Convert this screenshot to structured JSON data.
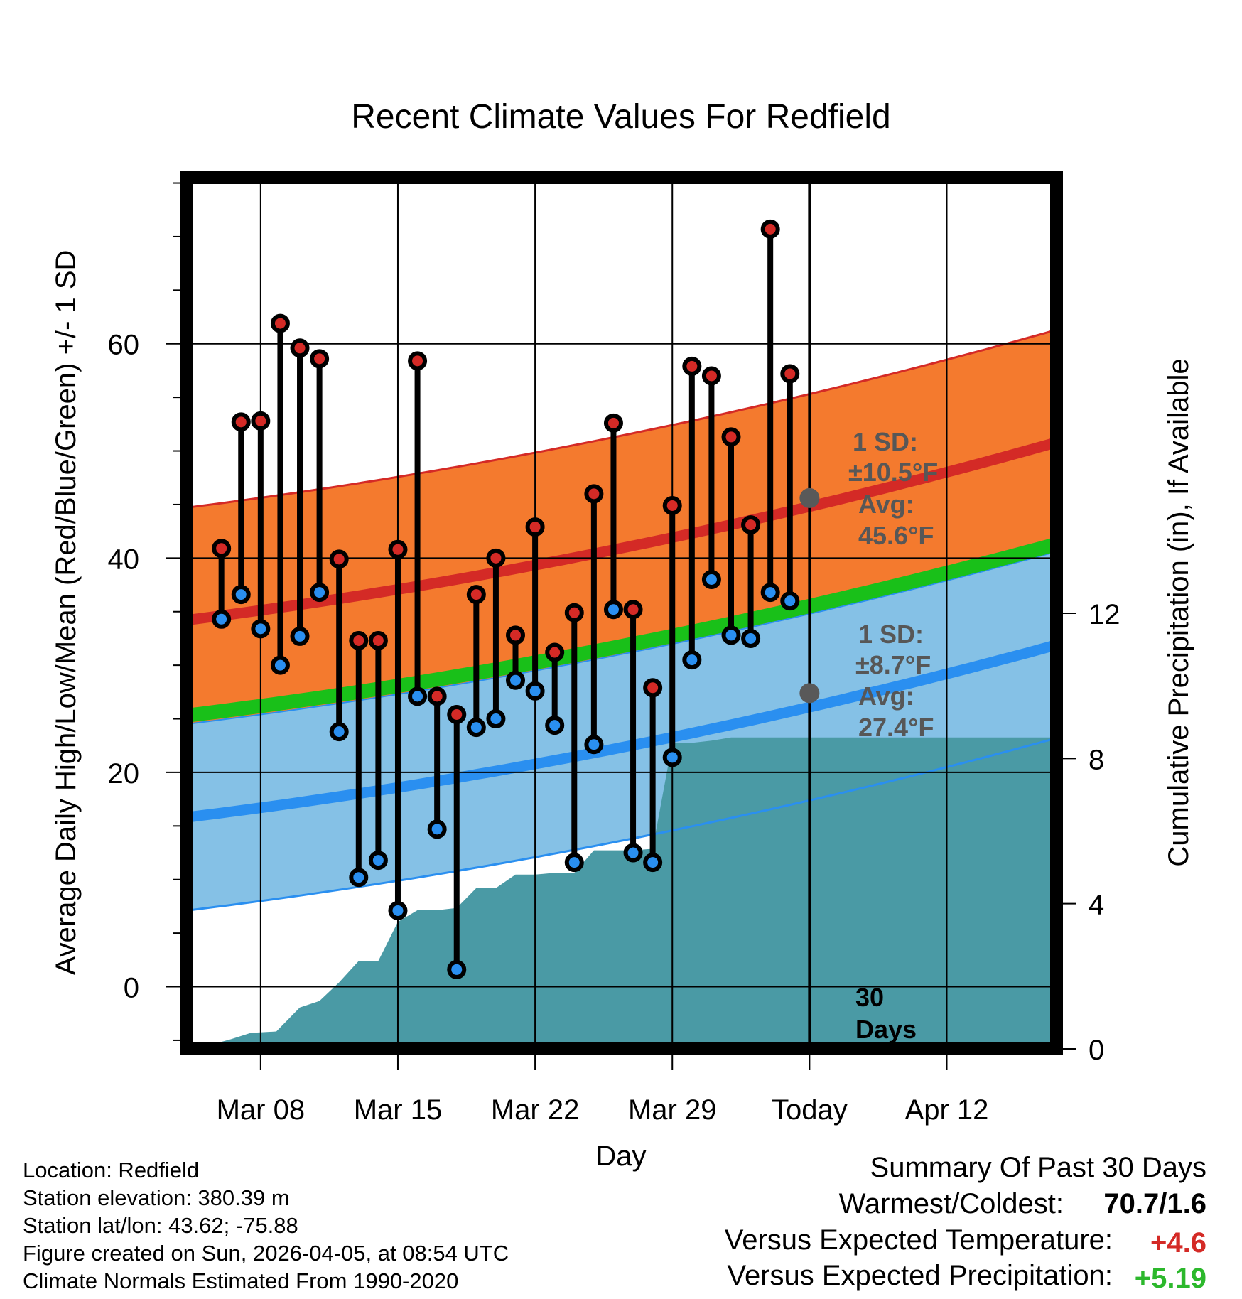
{
  "chart_data": {
    "type": "line",
    "title": "Recent Climate Values For Redfield",
    "xlabel": "Day",
    "ylabel": "Average Daily High/Low/Mean (Red/Blue/Green) +/- 1 SD",
    "y2label": "Cumulative Precipitation (in), If Available",
    "x_range": [
      -31.8,
      12.6
    ],
    "ylim": [
      -5.8,
      75.5
    ],
    "y2lim": [
      0,
      24
    ],
    "x_ticks": [
      {
        "day": -28,
        "label": "Mar 08"
      },
      {
        "day": -21,
        "label": "Mar 15"
      },
      {
        "day": -14,
        "label": "Mar 22"
      },
      {
        "day": -7,
        "label": "Mar 29"
      },
      {
        "day": 0,
        "label": "Today"
      },
      {
        "day": 7,
        "label": "Apr 12"
      }
    ],
    "y_ticks": [
      0,
      20,
      40,
      60
    ],
    "y2_ticks": [
      0,
      4,
      8,
      12
    ],
    "normal_high": {
      "start": 34.2,
      "end": 50.8,
      "sd_today": 10.5,
      "avg_today": 45.6
    },
    "normal_low": {
      "start": 15.8,
      "end": 31.9,
      "sd_today": 8.7,
      "avg_today": 27.4
    },
    "normal_mean": {
      "start": 25.3,
      "end": 41.3
    },
    "annotations": {
      "high": {
        "sd_label": "1 SD:",
        "sd_value": "±10.5°F",
        "avg_label": "Avg:",
        "avg_value": "45.6°F"
      },
      "low": {
        "sd_label": "1 SD:",
        "sd_value": "±8.7°F",
        "avg_label": "Avg:",
        "avg_value": "27.4°F"
      },
      "today_window": "30 Days"
    },
    "daily": {
      "days": [
        -30,
        -29,
        -28,
        -27,
        -26,
        -25,
        -24,
        -23,
        -22,
        -21,
        -20,
        -19,
        -18,
        -17,
        -16,
        -15,
        -14,
        -13,
        -12,
        -11,
        -10,
        -9,
        -8,
        -7,
        -6,
        -5,
        -4,
        -3,
        -2,
        -1
      ],
      "highs": [
        40.9,
        52.7,
        52.8,
        61.9,
        59.6,
        58.6,
        39.9,
        32.3,
        32.3,
        40.8,
        58.4,
        27.1,
        25.4,
        36.6,
        40.0,
        32.8,
        42.9,
        31.2,
        34.9,
        46.0,
        52.6,
        35.2,
        27.9,
        44.9,
        57.9,
        57.0,
        51.3,
        43.1,
        70.7,
        57.2
      ],
      "lows": [
        34.3,
        36.6,
        33.4,
        30.0,
        32.7,
        36.8,
        23.8,
        10.2,
        11.8,
        7.1,
        27.1,
        14.7,
        1.6,
        24.2,
        25.0,
        28.6,
        27.6,
        24.4,
        11.6,
        22.6,
        35.2,
        12.5,
        11.6,
        21.4,
        30.5,
        38.0,
        32.8,
        32.5,
        36.8,
        36.0
      ]
    },
    "precip": {
      "days": [
        -31.3,
        -29.5,
        -28.5,
        -27.2,
        -26,
        -25,
        -24,
        -23,
        -22,
        -21,
        -20,
        -19,
        -18,
        -17,
        -16,
        -15,
        -14,
        -13,
        -12,
        -11,
        -10,
        -9,
        -8,
        -7,
        -6,
        -5,
        -4,
        -3,
        -2,
        -1,
        0,
        12.6
      ],
      "cumulative": [
        0,
        0.27,
        0.44,
        0.48,
        1.14,
        1.32,
        1.83,
        2.42,
        2.42,
        3.5,
        3.82,
        3.82,
        3.88,
        4.43,
        4.43,
        4.8,
        4.8,
        4.85,
        4.85,
        5.47,
        5.47,
        5.47,
        5.51,
        8.43,
        8.43,
        8.49,
        8.58,
        8.58,
        8.58,
        8.58,
        8.58,
        8.58
      ]
    }
  },
  "info": {
    "location": "Location: Redfield",
    "elevation": "Station elevation: 380.39 m",
    "latlon": "Station lat/lon: 43.62; -75.88",
    "created": "Figure created on Sun, 2026-04-05, at 08:54 UTC",
    "normals": "Climate Normals Estimated From 1990-2020"
  },
  "summary": {
    "title": "Summary Of Past 30 Days",
    "warm_cold_label": "Warmest/Coldest:",
    "warm_cold_value": "70.7/1.6",
    "temp_label": "Versus Expected Temperature:",
    "temp_value": "+4.6",
    "precip_label": "Versus Expected Precipitation:",
    "precip_value": "+5.19"
  },
  "colors": {
    "high_band": "#f47a2e",
    "high_line": "#d42a26",
    "low_band": "#85c1e6",
    "low_line": "#2a8ff0",
    "mean_line": "#19c019",
    "overlap": "#9a1717",
    "precip": "#4a9aa5",
    "high_marker": "#d42a26",
    "low_marker": "#2a8ff0",
    "annotation": "#575757",
    "temp_anomaly": "#d42a26",
    "precip_anomaly": "#2cb82c"
  }
}
